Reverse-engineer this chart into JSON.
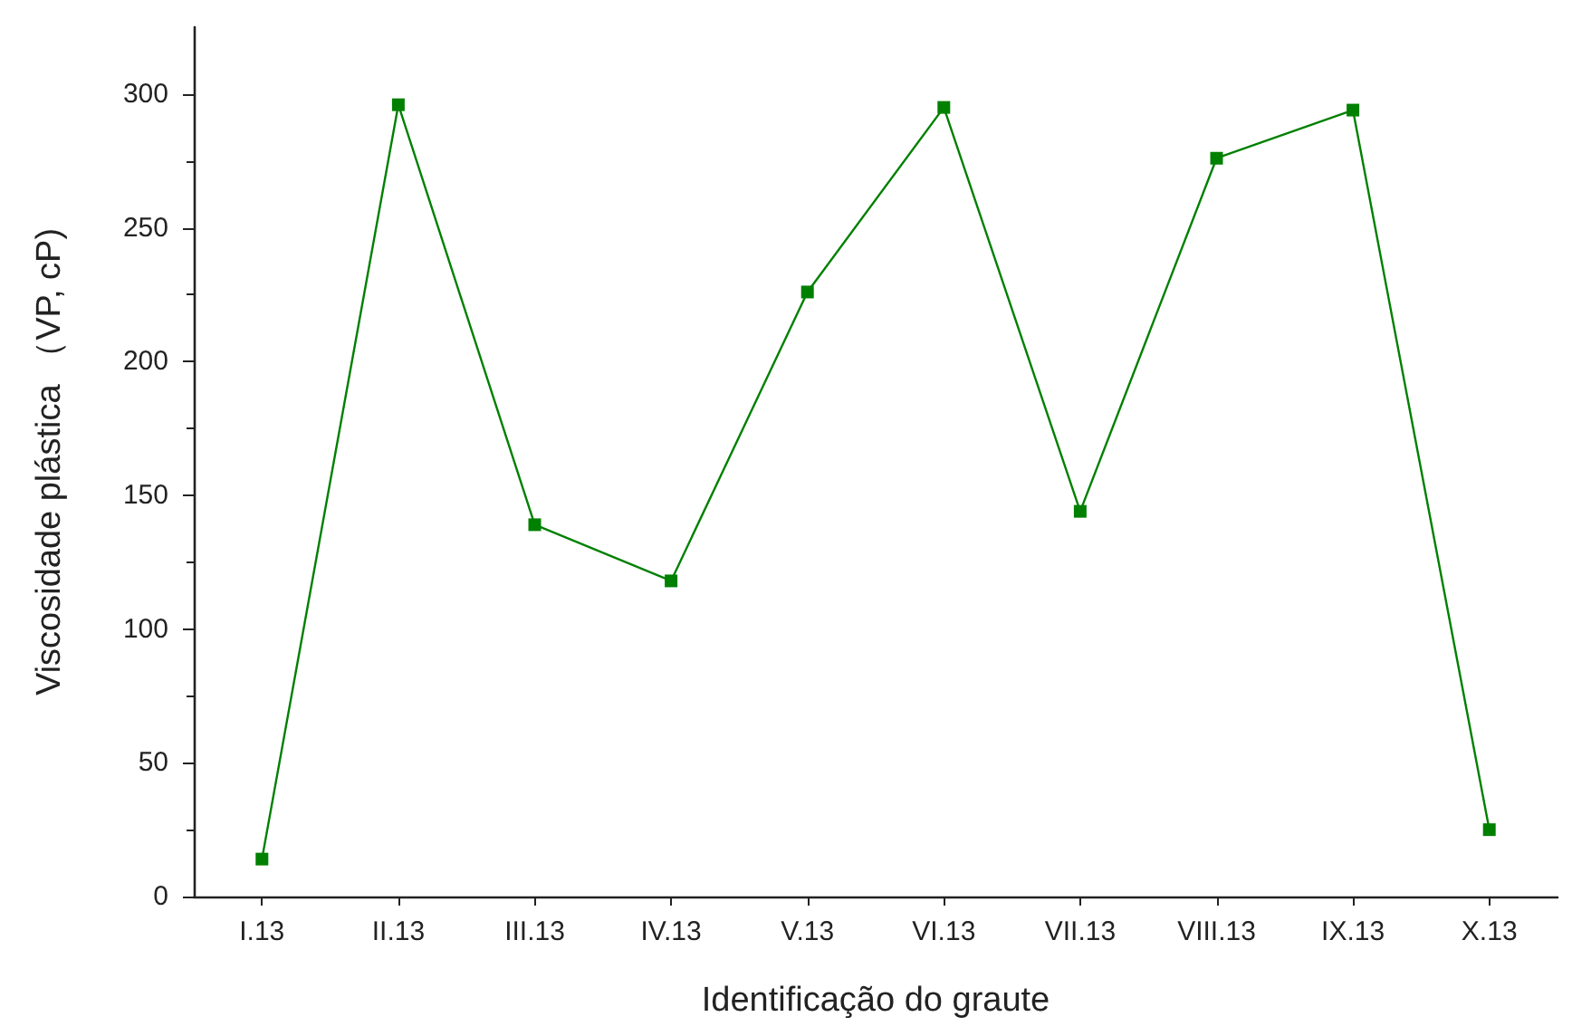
{
  "chart_data": {
    "type": "line",
    "xlabel": "Identificação do graute",
    "ylabel": "Viscosidade plástica （VP, cP)",
    "categories": [
      "I.13",
      "II.13",
      "III.13",
      "IV.13",
      "V.13",
      "VI.13",
      "VII.13",
      "VIII.13",
      "IX.13",
      "X.13"
    ],
    "series": [
      {
        "color": "#008000",
        "values": [
          14,
          296,
          139,
          118,
          226,
          295,
          144,
          276,
          294,
          25
        ]
      }
    ],
    "ylim": [
      0,
      325
    ],
    "yticks": [
      0,
      50,
      100,
      150,
      200,
      250,
      300
    ],
    "grid": false,
    "marker": "square",
    "line_style": "solid"
  }
}
